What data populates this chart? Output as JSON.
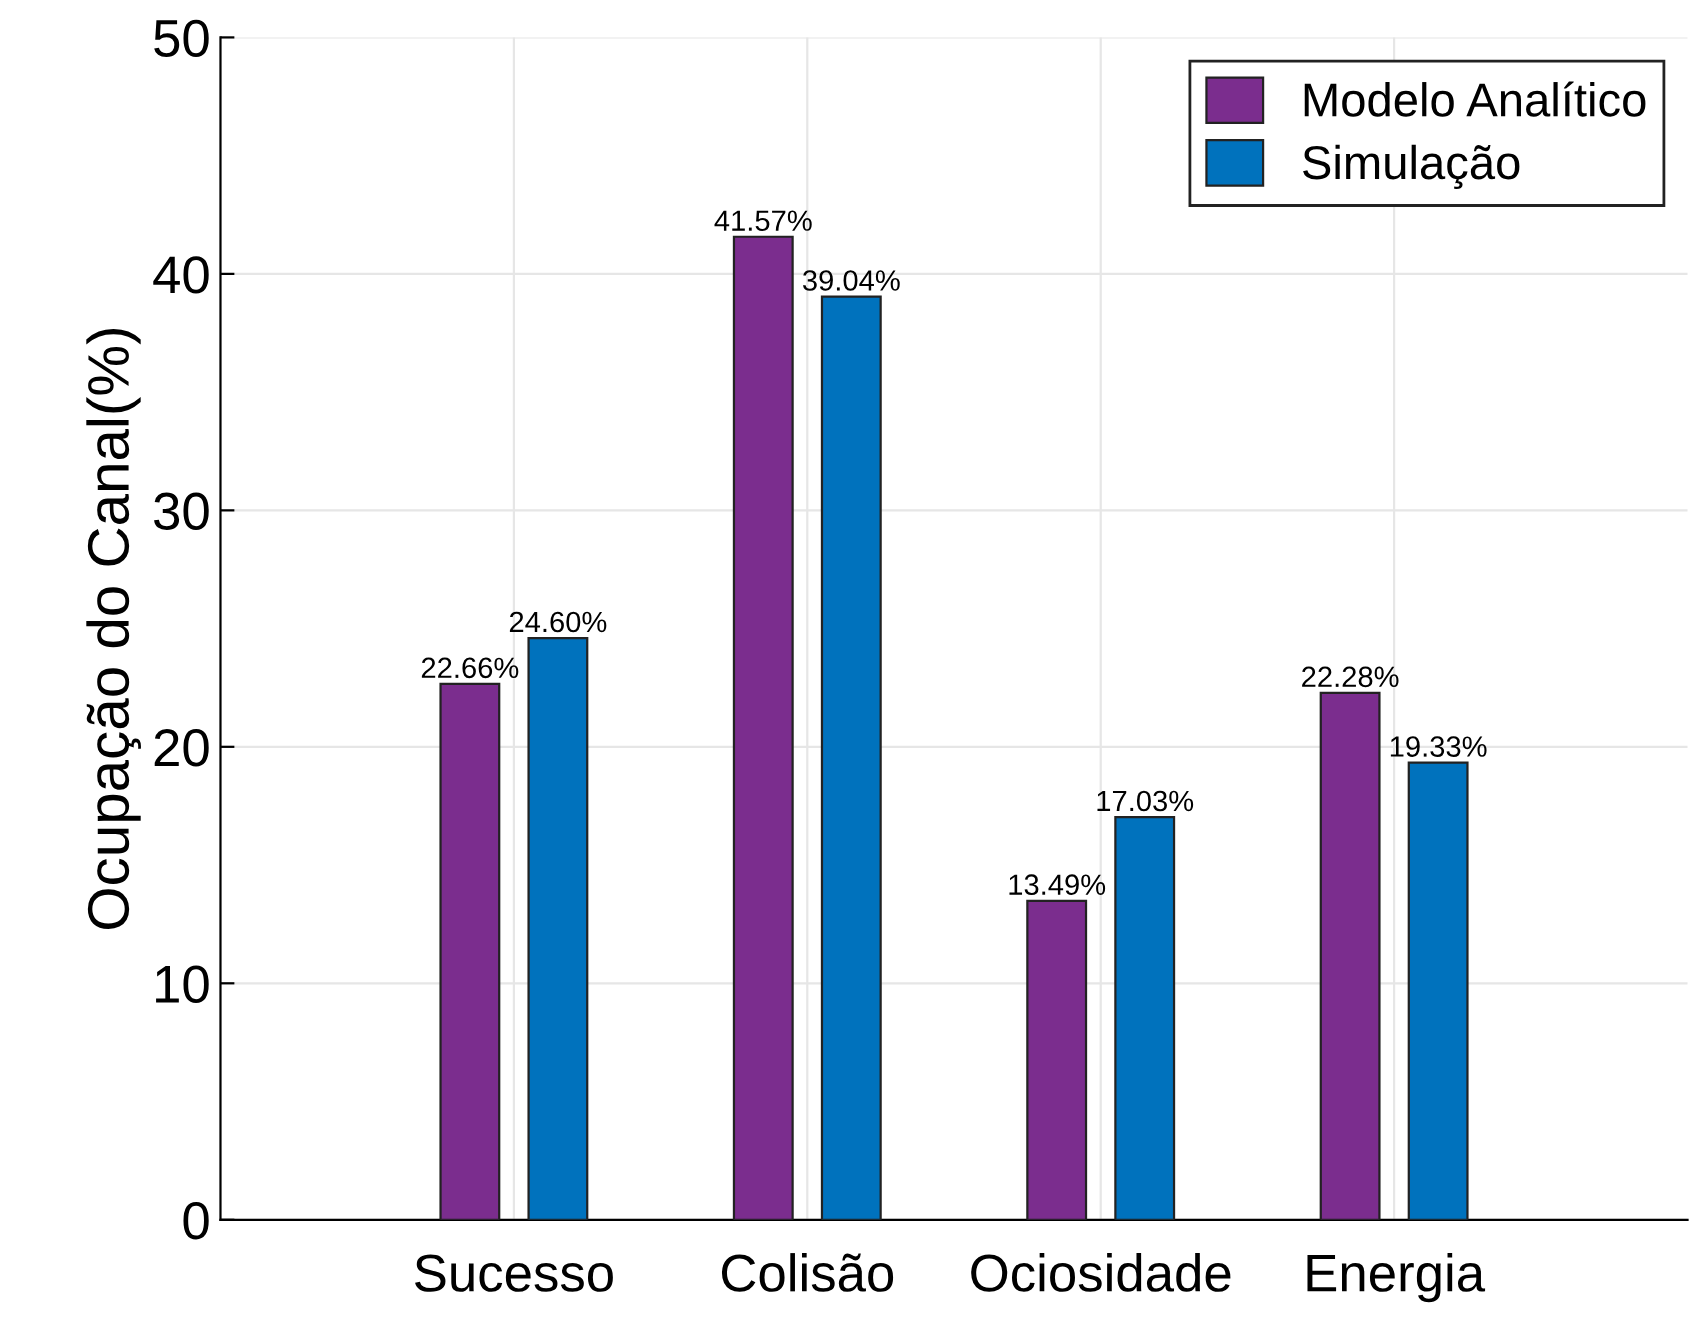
{
  "chart_data": {
    "type": "bar",
    "ylabel": "Ocupação do Canal(%)",
    "categories": [
      "Sucesso",
      "Colisão",
      "Ociosidade",
      "Energia"
    ],
    "series": [
      {
        "name": "Modelo Analítico",
        "color": "#7b2d8e",
        "values": [
          22.66,
          41.57,
          13.49,
          22.28
        ],
        "value_labels": [
          "22.66%",
          "41.57%",
          "13.49%",
          "22.28%"
        ]
      },
      {
        "name": "Simulação",
        "color": "#0072bd",
        "values": [
          24.6,
          39.04,
          17.03,
          19.33
        ],
        "value_labels": [
          "24.60%",
          "39.04%",
          "17.03%",
          "19.33%"
        ]
      }
    ],
    "ylim": [
      0,
      50
    ],
    "yticks": [
      0,
      10,
      20,
      30,
      40,
      50
    ],
    "grid": true,
    "legend": "top right"
  }
}
